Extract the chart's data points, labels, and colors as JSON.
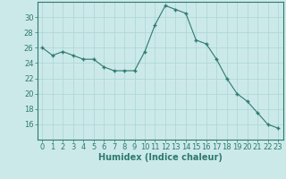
{
  "x": [
    0,
    1,
    2,
    3,
    4,
    5,
    6,
    7,
    8,
    9,
    10,
    11,
    12,
    13,
    14,
    15,
    16,
    17,
    18,
    19,
    20,
    21,
    22,
    23
  ],
  "y": [
    26,
    25,
    25.5,
    25,
    24.5,
    24.5,
    23.5,
    23,
    23,
    23,
    25.5,
    29,
    31.5,
    31,
    30.5,
    27,
    26.5,
    24.5,
    22,
    20,
    19,
    17.5,
    16,
    15.5
  ],
  "line_color": "#2d7a6e",
  "marker_color": "#2d7a6e",
  "bg_color": "#cce9e9",
  "grid_color": "#b0d8d8",
  "xlabel": "Humidex (Indice chaleur)",
  "ylim": [
    14,
    32
  ],
  "yticks": [
    16,
    18,
    20,
    22,
    24,
    26,
    28,
    30
  ],
  "xticks": [
    0,
    1,
    2,
    3,
    4,
    5,
    6,
    7,
    8,
    9,
    10,
    11,
    12,
    13,
    14,
    15,
    16,
    17,
    18,
    19,
    20,
    21,
    22,
    23
  ],
  "xlabel_fontsize": 7,
  "tick_fontsize": 6,
  "axis_color": "#2d7a6e"
}
